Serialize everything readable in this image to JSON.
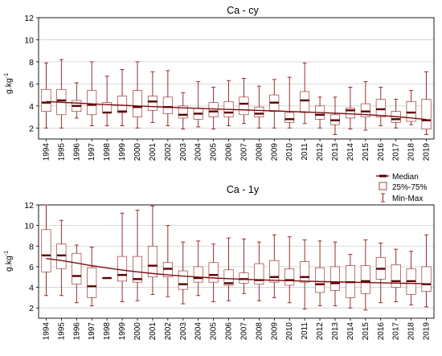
{
  "colors": {
    "box": "#8b1a1a",
    "median": "#5a0000",
    "trend": "#7a0e0e",
    "grid": "#cfcfcf",
    "axis": "#000000"
  },
  "legend": {
    "median": "Median",
    "quartiles": "25%-75%",
    "range": "Min-Max"
  },
  "chart_data": [
    {
      "type": "box",
      "title": "Ca - cy",
      "ylabel": "g.kg-1",
      "ylabel_main": "g.kg",
      "ylabel_sup": "-1",
      "ylim": [
        1,
        12
      ],
      "yticks": [
        2,
        4,
        6,
        8,
        10,
        12
      ],
      "grid": true,
      "categories": [
        "1994",
        "1995",
        "1996",
        "1997",
        "1998",
        "1999",
        "2000",
        "2001",
        "2002",
        "2003",
        "2004",
        "2005",
        "2006",
        "2007",
        "2008",
        "2009",
        "2010",
        "2011",
        "2012",
        "2013",
        "2014",
        "2015",
        "2016",
        "2017",
        "2018",
        "2019"
      ],
      "min": [
        2.0,
        2.0,
        2.9,
        2.2,
        2.2,
        2.2,
        2.0,
        2.5,
        2.2,
        1.9,
        2.1,
        1.9,
        2.2,
        2.4,
        2.0,
        2.0,
        2.0,
        2.4,
        2.0,
        1.4,
        1.9,
        1.8,
        2.2,
        2.0,
        2.3,
        1.4
      ],
      "q1": [
        3.5,
        3.2,
        3.5,
        3.2,
        3.4,
        3.4,
        3.0,
        3.6,
        3.3,
        2.9,
        2.8,
        3.0,
        3.0,
        3.2,
        3.0,
        3.5,
        2.5,
        3.4,
        2.8,
        2.3,
        2.9,
        3.0,
        3.0,
        2.5,
        2.6,
        1.9
      ],
      "median": [
        4.3,
        4.5,
        4.0,
        4.1,
        3.4,
        3.5,
        3.9,
        4.4,
        3.9,
        3.2,
        3.3,
        3.5,
        3.4,
        4.2,
        3.3,
        4.3,
        2.8,
        4.5,
        3.2,
        2.7,
        3.6,
        3.5,
        3.7,
        2.8,
        3.4,
        2.7
      ],
      "q3": [
        5.5,
        5.5,
        4.5,
        5.4,
        4.3,
        4.9,
        5.4,
        4.9,
        4.8,
        4.0,
        3.8,
        4.3,
        4.4,
        4.8,
        3.9,
        5.0,
        3.4,
        5.3,
        4.0,
        3.2,
        3.8,
        4.2,
        4.6,
        3.5,
        4.4,
        4.6
      ],
      "max": [
        7.9,
        8.2,
        6.1,
        8.0,
        6.7,
        7.3,
        8.0,
        7.1,
        7.2,
        5.2,
        6.2,
        5.7,
        6.3,
        6.5,
        5.8,
        6.4,
        6.6,
        7.9,
        4.8,
        4.8,
        5.7,
        6.2,
        5.7,
        4.6,
        5.4,
        7.1
      ],
      "trend": [
        4.4,
        4.33,
        4.26,
        4.19,
        4.12,
        4.06,
        4.0,
        3.94,
        3.88,
        3.83,
        3.78,
        3.73,
        3.68,
        3.64,
        3.59,
        3.55,
        3.5,
        3.45,
        3.4,
        3.34,
        3.28,
        3.21,
        3.13,
        3.03,
        2.91,
        2.77
      ]
    },
    {
      "type": "box",
      "title": "Ca - 1y",
      "ylabel": "g.kg-1",
      "ylabel_main": "g.kg",
      "ylabel_sup": "-1",
      "ylim": [
        1,
        12
      ],
      "yticks": [
        2,
        4,
        6,
        8,
        10,
        12
      ],
      "grid": true,
      "categories": [
        "1994",
        "1995",
        "1996",
        "1997",
        "1998",
        "1999",
        "2000",
        "2001",
        "2002",
        "2003",
        "2004",
        "2005",
        "2006",
        "2007",
        "2008",
        "2009",
        "2010",
        "2011",
        "2012",
        "2013",
        "2014",
        "2015",
        "2016",
        "2017",
        "2018",
        "2019"
      ],
      "min": [
        3.2,
        3.2,
        2.5,
        2.2,
        4.9,
        2.6,
        2.7,
        3.3,
        3.1,
        2.4,
        3.2,
        2.6,
        2.7,
        3.4,
        2.7,
        3.0,
        2.5,
        1.9,
        2.2,
        2.2,
        2.0,
        1.8,
        2.5,
        2.6,
        2.3,
        2.1
      ],
      "q1": [
        5.5,
        5.8,
        4.3,
        3.0,
        4.9,
        4.6,
        4.5,
        5.0,
        5.0,
        3.8,
        4.5,
        4.5,
        4.2,
        4.4,
        4.3,
        4.5,
        4.2,
        4.5,
        3.5,
        3.7,
        3.0,
        3.4,
        4.8,
        4.0,
        3.3,
        3.6
      ],
      "median": [
        7.1,
        7.1,
        5.1,
        4.1,
        4.9,
        5.2,
        4.8,
        6.1,
        5.8,
        4.3,
        4.9,
        5.2,
        4.4,
        4.8,
        4.7,
        5.0,
        4.7,
        5.0,
        4.3,
        4.4,
        4.5,
        4.6,
        5.8,
        4.6,
        4.6,
        4.3
      ],
      "q3": [
        9.6,
        8.2,
        7.3,
        5.9,
        4.9,
        7.0,
        7.0,
        8.0,
        6.4,
        5.6,
        6.0,
        6.4,
        5.7,
        5.4,
        6.3,
        6.6,
        5.8,
        6.5,
        5.9,
        6.0,
        6.1,
        6.1,
        6.9,
        6.2,
        5.8,
        6.0
      ],
      "max": [
        12.0,
        10.5,
        8.1,
        7.9,
        4.9,
        11.2,
        11.5,
        11.9,
        10.0,
        8.4,
        8.5,
        8.2,
        8.8,
        8.7,
        8.4,
        9.1,
        8.9,
        8.6,
        8.5,
        8.4,
        7.2,
        8.6,
        8.3,
        7.7,
        7.5,
        9.1
      ],
      "trend": [
        6.8,
        6.6,
        6.36,
        6.1,
        5.88,
        5.68,
        5.5,
        5.34,
        5.21,
        5.09,
        4.99,
        4.91,
        4.84,
        4.78,
        4.73,
        4.68,
        4.64,
        4.6,
        4.56,
        4.53,
        4.5,
        4.47,
        4.44,
        4.41,
        4.38,
        4.35
      ]
    }
  ]
}
